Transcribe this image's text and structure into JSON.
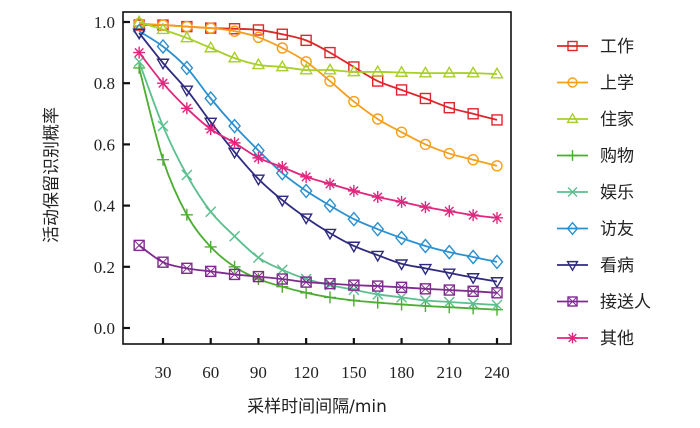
{
  "chart_data": {
    "type": "line",
    "title": "",
    "xlabel": "采样时间间隔/min",
    "ylabel": "活动保留识别概率",
    "xlim": [
      2,
      248
    ],
    "ylim": [
      -0.02,
      1.03
    ],
    "xticks": [
      30,
      60,
      90,
      120,
      150,
      180,
      210,
      240
    ],
    "xtick_labels": [
      "30",
      "60",
      "90",
      "120",
      "150",
      "180",
      "210",
      "240"
    ],
    "yticks": [
      0.0,
      0.2,
      0.4,
      0.6,
      0.8,
      1.0
    ],
    "ytick_labels": [
      "0.0",
      "0.2",
      "0.4",
      "0.6",
      "0.8",
      "1.0"
    ],
    "grid": false,
    "legend_position": "right",
    "x": [
      15,
      30,
      45,
      60,
      75,
      90,
      105,
      120,
      135,
      150,
      165,
      180,
      195,
      210,
      225,
      240
    ],
    "series": [
      {
        "name": "工作",
        "color": "#e0262a",
        "marker": "square",
        "values": [
          0.99,
          0.99,
          0.985,
          0.98,
          0.978,
          0.974,
          0.96,
          0.94,
          0.9,
          0.853,
          0.807,
          0.778,
          0.75,
          0.72,
          0.7,
          0.68
        ]
      },
      {
        "name": "上学",
        "color": "#f5a01a",
        "marker": "circle",
        "values": [
          0.995,
          0.99,
          0.985,
          0.98,
          0.97,
          0.95,
          0.915,
          0.87,
          0.807,
          0.74,
          0.683,
          0.64,
          0.6,
          0.57,
          0.55,
          0.53
        ]
      },
      {
        "name": "住家",
        "color": "#a8cf2a",
        "marker": "triangle-up",
        "values": [
          1.0,
          0.975,
          0.948,
          0.915,
          0.882,
          0.86,
          0.853,
          0.843,
          0.843,
          0.837,
          0.837,
          0.835,
          0.833,
          0.833,
          0.833,
          0.83
        ]
      },
      {
        "name": "购物",
        "color": "#4cad32",
        "marker": "plus",
        "values": [
          0.85,
          0.55,
          0.37,
          0.265,
          0.2,
          0.16,
          0.135,
          0.115,
          0.1,
          0.09,
          0.083,
          0.077,
          0.072,
          0.068,
          0.064,
          0.06
        ]
      },
      {
        "name": "娱乐",
        "color": "#5bbf8e",
        "marker": "x",
        "values": [
          0.87,
          0.66,
          0.5,
          0.38,
          0.3,
          0.23,
          0.19,
          0.16,
          0.14,
          0.125,
          0.11,
          0.1,
          0.09,
          0.085,
          0.08,
          0.075
        ]
      },
      {
        "name": "访友",
        "color": "#2b90d0",
        "marker": "diamond",
        "values": [
          0.97,
          0.92,
          0.85,
          0.75,
          0.66,
          0.58,
          0.506,
          0.448,
          0.4,
          0.356,
          0.323,
          0.294,
          0.268,
          0.248,
          0.232,
          0.216
        ]
      },
      {
        "name": "看病",
        "color": "#2e2a7f",
        "marker": "triangle-down",
        "values": [
          0.964,
          0.866,
          0.778,
          0.673,
          0.575,
          0.487,
          0.418,
          0.36,
          0.31,
          0.268,
          0.238,
          0.21,
          0.195,
          0.18,
          0.165,
          0.152
        ]
      },
      {
        "name": "接送人",
        "color": "#7e2c8e",
        "marker": "boxed-x",
        "values": [
          0.27,
          0.215,
          0.195,
          0.185,
          0.175,
          0.168,
          0.16,
          0.15,
          0.145,
          0.14,
          0.137,
          0.133,
          0.128,
          0.124,
          0.12,
          0.115
        ]
      },
      {
        "name": "其他",
        "color": "#e1267e",
        "marker": "asterisk",
        "values": [
          0.9,
          0.8,
          0.718,
          0.65,
          0.605,
          0.556,
          0.526,
          0.494,
          0.471,
          0.448,
          0.428,
          0.412,
          0.395,
          0.382,
          0.369,
          0.36
        ]
      }
    ]
  }
}
